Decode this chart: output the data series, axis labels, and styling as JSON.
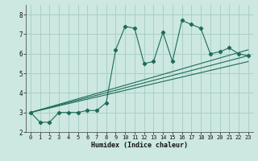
{
  "background_color": "#cce8e0",
  "grid_color": "#aacfca",
  "line_color": "#1e6b5a",
  "xlim": [
    -0.5,
    23.5
  ],
  "ylim": [
    2.0,
    8.5
  ],
  "xticks": [
    0,
    1,
    2,
    3,
    4,
    5,
    6,
    7,
    8,
    9,
    10,
    11,
    12,
    13,
    14,
    15,
    16,
    17,
    18,
    19,
    20,
    21,
    22,
    23
  ],
  "yticks": [
    2,
    3,
    4,
    5,
    6,
    7,
    8
  ],
  "xlabel": "Humidex (Indice chaleur)",
  "main_series_x": [
    0,
    1,
    2,
    3,
    4,
    5,
    6,
    7,
    8,
    9,
    10,
    11,
    12,
    13,
    14,
    15,
    16,
    17,
    18,
    19,
    20,
    21,
    22,
    23
  ],
  "main_series_y": [
    3.0,
    2.5,
    2.5,
    3.0,
    3.0,
    3.0,
    3.1,
    3.1,
    3.5,
    6.2,
    7.4,
    7.3,
    5.5,
    5.6,
    7.1,
    5.6,
    7.7,
    7.5,
    7.3,
    6.0,
    6.1,
    6.3,
    6.0,
    5.9
  ],
  "trend1_x": [
    0,
    23
  ],
  "trend1_y": [
    3.0,
    5.9
  ],
  "trend2_x": [
    0,
    23
  ],
  "trend2_y": [
    3.0,
    5.6
  ],
  "trend3_x": [
    0,
    23
  ],
  "trend3_y": [
    3.0,
    6.2
  ]
}
